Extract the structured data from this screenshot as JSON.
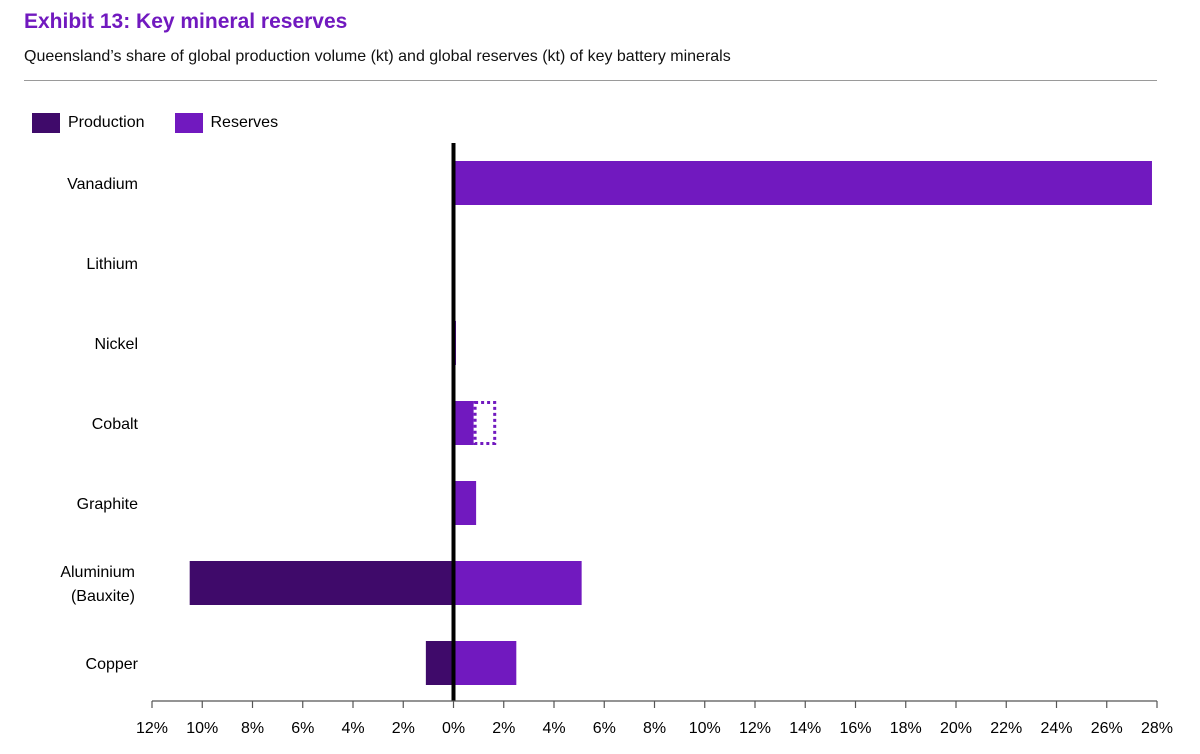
{
  "title": "Exhibit 13: Key mineral reserves",
  "subtitle": "Queensland’s share of global production volume (kt) and global reserves (kt) of key battery minerals",
  "colors": {
    "production": "#3F0A6A",
    "reserves": "#7119BF",
    "title": "#7119BF"
  },
  "legend": [
    {
      "name": "Production",
      "color": "#3F0A6A"
    },
    {
      "name": "Reserves",
      "color": "#7119BF"
    }
  ],
  "chart_data": {
    "type": "bar",
    "orientation": "horizontal",
    "title": "Exhibit 13: Key mineral reserves",
    "subtitle": "Queensland’s share of global production volume (kt) and global reserves (kt) of key battery minerals",
    "categories": [
      [
        "Vanadium"
      ],
      [
        "Lithium"
      ],
      [
        "Nickel"
      ],
      [
        "Cobalt"
      ],
      [
        "Graphite"
      ],
      [
        "Aluminium",
        "(Bauxite)"
      ],
      [
        "Copper"
      ]
    ],
    "series": [
      {
        "name": "Production",
        "direction": "left",
        "values": [
          0,
          0,
          0,
          0,
          0,
          10.5,
          1.1
        ]
      },
      {
        "name": "Reserves",
        "direction": "right",
        "values": [
          27.8,
          0,
          0.1,
          0.8,
          0.9,
          5.1,
          2.5
        ]
      }
    ],
    "annotations": [
      {
        "category": "Cobalt",
        "series": "Reserves",
        "style": "dotted-outline",
        "from": 0.8,
        "to": 1.7
      }
    ],
    "xlim": [
      -12,
      28
    ],
    "xticks": [
      "12%",
      "10%",
      "8%",
      "6%",
      "4%",
      "2%",
      "0%",
      "2%",
      "4%",
      "6%",
      "8%",
      "10%",
      "12%",
      "14%",
      "16%",
      "18%",
      "20%",
      "22%",
      "24%",
      "26%",
      "28%"
    ],
    "legend_position": "top-left",
    "grid": false
  }
}
